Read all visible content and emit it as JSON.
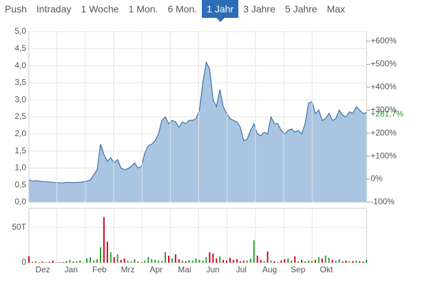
{
  "tabs": [
    "Push",
    "Intraday",
    "1 Woche",
    "1 Mon.",
    "6 Mon.",
    "1 Jahr",
    "3 Jahre",
    "5 Jahre",
    "Max"
  ],
  "active_tab": 5,
  "chart_data": [
    {
      "type": "area",
      "color": "#3d6fa5",
      "fill": "#a9c5e2",
      "values": [
        0.65,
        0.62,
        0.63,
        0.62,
        0.6,
        0.6,
        0.59,
        0.58,
        0.57,
        0.57,
        0.56,
        0.58,
        0.58,
        0.57,
        0.58,
        0.58,
        0.6,
        0.62,
        0.65,
        0.8,
        0.95,
        1.7,
        1.4,
        1.2,
        1.3,
        1.15,
        1.25,
        1.0,
        0.95,
        0.98,
        1.05,
        1.15,
        1.0,
        1.05,
        1.45,
        1.65,
        1.7,
        1.8,
        2.0,
        2.4,
        2.5,
        2.3,
        2.4,
        2.35,
        2.2,
        2.35,
        2.3,
        2.4,
        2.4,
        2.45,
        2.7,
        3.5,
        4.1,
        3.9,
        3.0,
        2.8,
        3.3,
        2.8,
        2.6,
        2.45,
        2.4,
        2.35,
        2.2,
        1.8,
        1.85,
        2.1,
        2.3,
        2.0,
        1.95,
        2.05,
        2.0,
        2.5,
        2.3,
        2.3,
        2.1,
        2.0,
        2.1,
        2.15,
        2.05,
        2.1,
        2.0,
        2.3,
        2.9,
        2.95,
        2.6,
        2.7,
        2.4,
        2.45,
        2.6,
        2.4,
        2.45,
        2.7,
        2.55,
        2.5,
        2.65,
        2.6,
        2.8,
        2.7,
        2.6,
        2.63
      ],
      "ylim": [
        0,
        5
      ],
      "yticks": [
        {
          "value": 0,
          "label": "0,0"
        },
        {
          "value": 0.5,
          "label": "0,5"
        },
        {
          "value": 1,
          "label": "1,0"
        },
        {
          "value": 1.5,
          "label": "1,5"
        },
        {
          "value": 2,
          "label": "2,0"
        },
        {
          "value": 2.5,
          "label": "2,5"
        },
        {
          "value": 3,
          "label": "3,0"
        },
        {
          "value": 3.5,
          "label": "3,5"
        },
        {
          "value": 4,
          "label": "4,0"
        },
        {
          "value": 4.5,
          "label": "4,5"
        },
        {
          "value": 5,
          "label": "5,0"
        }
      ],
      "y2lim": [
        -100,
        642
      ],
      "y2ticks": [
        {
          "value": -100,
          "label": "-100%"
        },
        {
          "value": 0,
          "label": "0%"
        },
        {
          "value": 100,
          "label": "+100%"
        },
        {
          "value": 200,
          "label": "+200%"
        },
        {
          "value": 300,
          "label": "+300%"
        },
        {
          "value": 400,
          "label": "+400%"
        },
        {
          "value": 500,
          "label": "+500%"
        },
        {
          "value": 600,
          "label": "+600%"
        }
      ],
      "last_change": {
        "value": 281.7,
        "label": "+281,7%"
      },
      "annotation_color": "#2a9a2a",
      "grid": true
    },
    {
      "type": "bar",
      "up_color": "#2e9b2e",
      "down_color": "#d0021b",
      "values": [
        9000,
        1000,
        2000,
        500,
        1500,
        800,
        1200,
        3000,
        600,
        1000,
        900,
        2500,
        4000,
        1500,
        2000,
        3000,
        500,
        6000,
        8000,
        3000,
        5000,
        22000,
        65000,
        30000,
        15000,
        8000,
        12000,
        4000,
        6000,
        3000,
        2000,
        5000,
        1500,
        1000,
        3000,
        8000,
        5000,
        4000,
        3000,
        2000,
        15000,
        10000,
        6000,
        12000,
        5000,
        3000,
        2000,
        4000,
        3000,
        6000,
        4000,
        3000,
        8000,
        15000,
        13000,
        6000,
        9000,
        4000,
        3000,
        7000,
        4000,
        5000,
        2000,
        3000,
        3000,
        6000,
        32000,
        10000,
        4000,
        2000,
        16000,
        3000,
        2000,
        1000,
        3000,
        5000,
        6000,
        3000,
        9000,
        2000,
        4000,
        2000,
        3000,
        2500,
        4000,
        8000,
        6000,
        10000,
        7000,
        4000,
        3000,
        5000,
        2000,
        3000,
        2000,
        2500,
        3000,
        2000,
        1500,
        4000
      ],
      "ylim": [
        0,
        77500
      ],
      "yticks": [
        0,
        {
          "value": 50000,
          "label": "50T"
        }
      ],
      "xtick_labels": [
        "Dez",
        "Jan",
        "Feb",
        "Mrz",
        "Apr",
        "Mai",
        "Jun",
        "Jul",
        "Aug",
        "Sep",
        "Okt"
      ],
      "grid": true
    }
  ]
}
